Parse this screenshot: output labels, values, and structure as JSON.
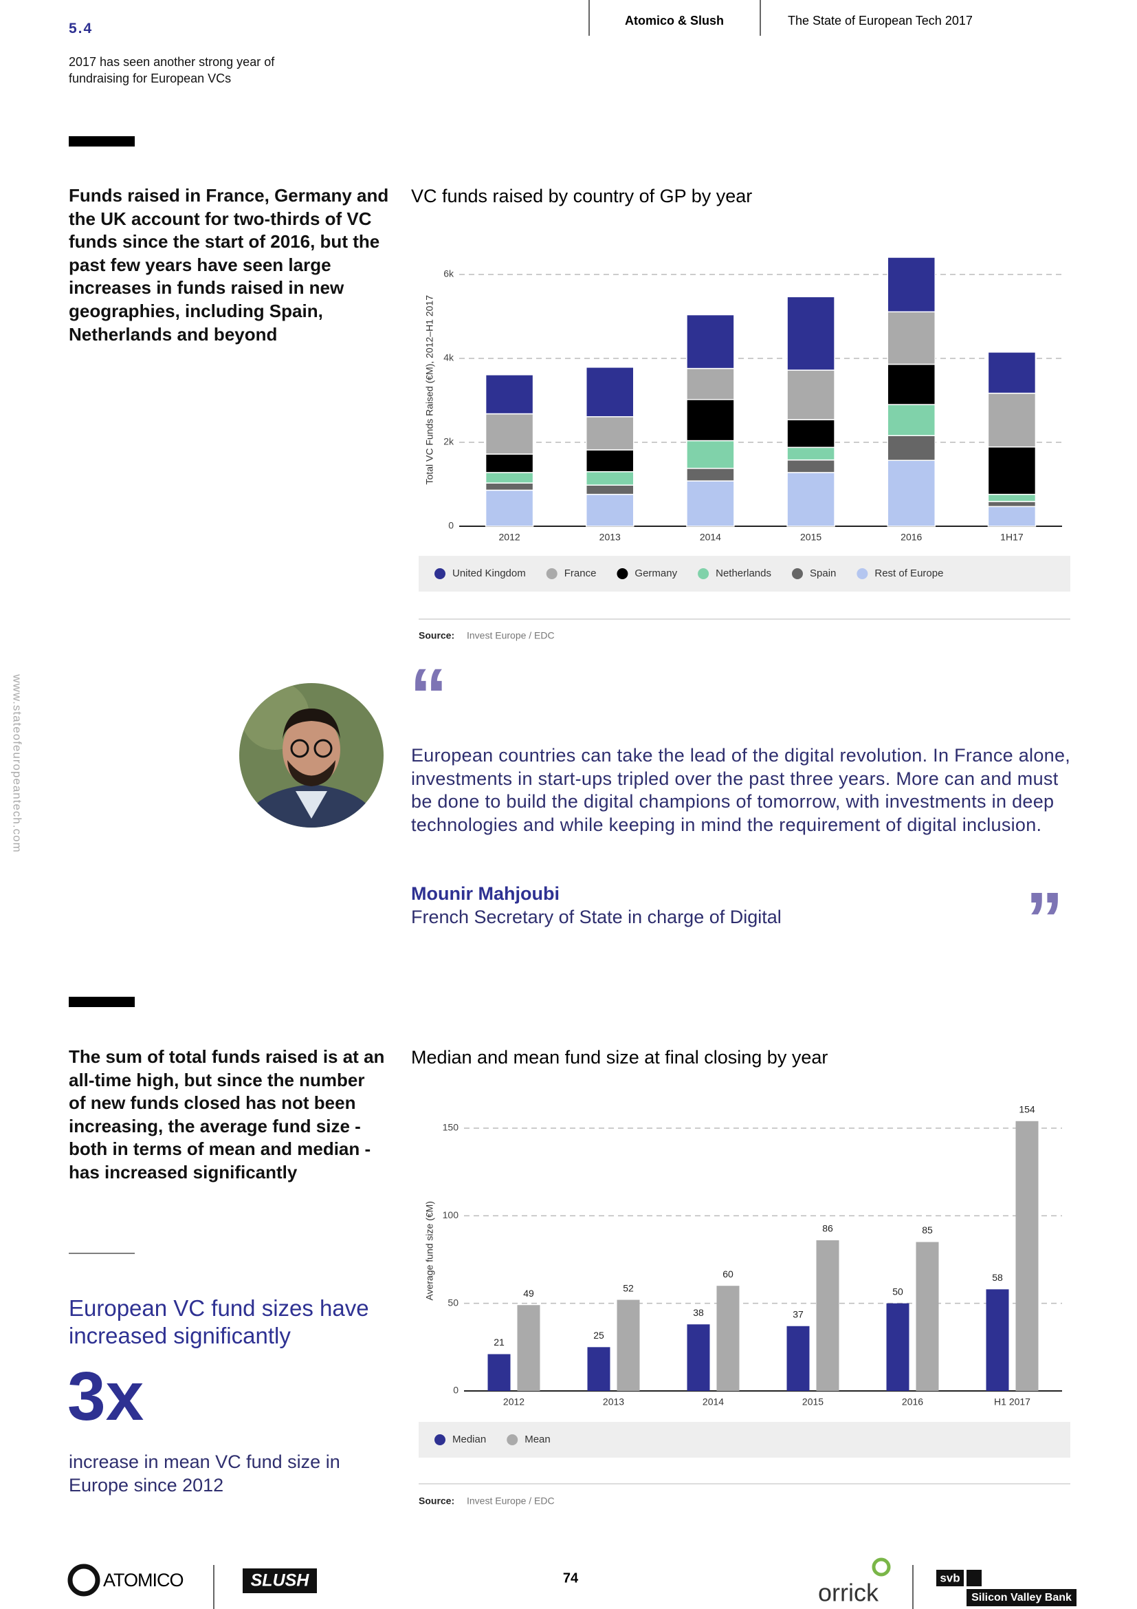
{
  "header": {
    "section": "5.4",
    "subtitle": "2017 has seen another strong year of fundraising for European VCs",
    "brand": "Atomico & Slush",
    "report": "The State of European Tech 2017"
  },
  "side_url": "www.stateofeuropeantech.com",
  "section1": {
    "text": "Funds raised in France, Germany and the UK account for two-thirds of VC funds since the start of 2016, but the past few years have seen large increases in funds raised in new geographies, including Spain, Netherlands and beyond"
  },
  "chart_data": [
    {
      "type": "bar",
      "stacked": true,
      "title": "VC funds raised by country of GP by year",
      "ylabel": "Total VC Funds Raised (€M), 2012–H1 2017",
      "categories": [
        "2012",
        "2013",
        "2014",
        "2015",
        "2016",
        "1H17"
      ],
      "series": [
        {
          "name": "Rest of Europe",
          "color": "#b4c6f0",
          "values": [
            860,
            760,
            1080,
            1280,
            1570,
            470
          ]
        },
        {
          "name": "Spain",
          "color": "#666666",
          "values": [
            170,
            220,
            300,
            300,
            590,
            120
          ]
        },
        {
          "name": "Netherlands",
          "color": "#80d2aa",
          "values": [
            250,
            320,
            660,
            300,
            740,
            170
          ]
        },
        {
          "name": "Germany",
          "color": "#000000",
          "values": [
            440,
            520,
            980,
            660,
            960,
            1130
          ]
        },
        {
          "name": "France",
          "color": "#aaaaaa",
          "values": [
            960,
            790,
            740,
            1180,
            1250,
            1280
          ]
        },
        {
          "name": "United Kingdom",
          "color": "#2e3192",
          "values": [
            930,
            1180,
            1280,
            1750,
            1300,
            980
          ]
        }
      ],
      "legend_order": "reverse",
      "ylim": [
        0,
        6500
      ],
      "yticks": [
        0,
        {
          "value": 2000,
          "label": "2k"
        },
        {
          "value": 4000,
          "label": "4k"
        },
        {
          "value": 6000,
          "label": "6k"
        }
      ],
      "grid": true,
      "source_label": "Source:",
      "source": "Invest Europe / EDC"
    },
    {
      "type": "bar",
      "stacked": false,
      "data_labels": true,
      "title": "Median and mean fund size at final closing by year",
      "ylabel": "Average fund size (€M)",
      "categories": [
        "2012",
        "2013",
        "2014",
        "2015",
        "2016",
        "H1 2017"
      ],
      "series": [
        {
          "name": "Median",
          "color": "#2e3192",
          "values": [
            21,
            25,
            38,
            37,
            50,
            58
          ]
        },
        {
          "name": "Mean",
          "color": "#aaaaaa",
          "values": [
            49,
            52,
            60,
            86,
            85,
            154
          ]
        }
      ],
      "legend_order": "normal",
      "ylim": [
        0,
        160
      ],
      "yticks": [
        0,
        50,
        100,
        150
      ],
      "grid": true,
      "source_label": "Source:",
      "source": "Invest Europe / EDC"
    }
  ],
  "quote": {
    "text": "European countries can take the lead of the digital revolution. In France alone, investments in start-ups tripled over the past three years. More can and must be done to build the digital champions of tomorrow, with investments in deep technologies and while keeping in mind the requirement of digital inclusion.",
    "name": "Mounir Mahjoubi",
    "role": "French Secretary of State in charge of Digital"
  },
  "section2": {
    "text": "The sum of total funds raised is at an all-time high, but since the number of new funds closed has not been increasing, the average fund size - both in terms of mean and median - has increased significantly",
    "highlight": "European VC fund sizes have increased significantly",
    "stat": "3x",
    "stat_caption": "increase in mean VC fund size in Europe since 2012"
  },
  "footer": {
    "page": "74",
    "atomico": "ATOMICO",
    "slush": "SLUSH",
    "orrick": "orrick",
    "svb": "svb",
    "svb_name": "Silicon Valley Bank"
  }
}
